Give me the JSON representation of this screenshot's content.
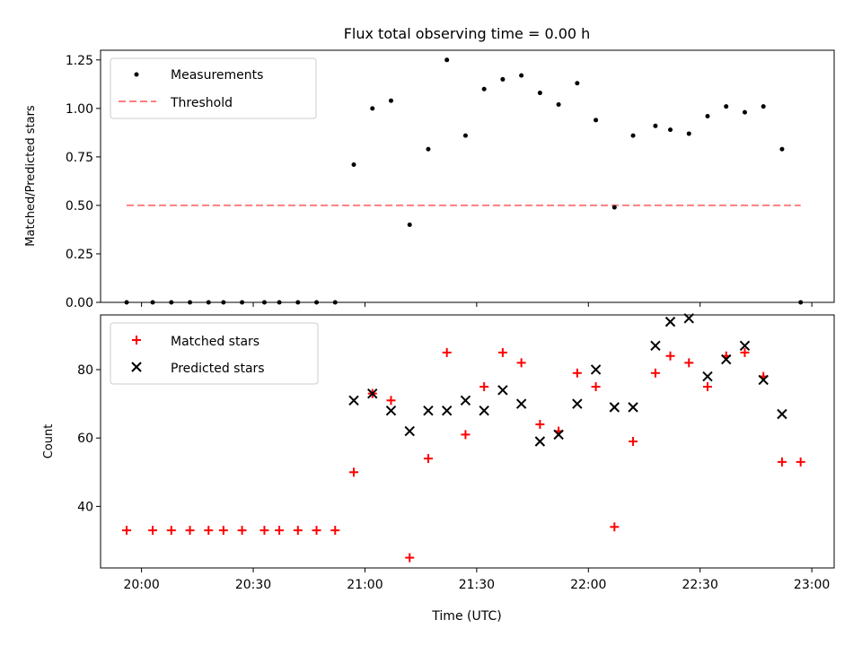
{
  "chart_data": [
    {
      "type": "scatter",
      "title": "Flux total observing time = 0.00 h",
      "ylabel": "Matched/Predicted stars",
      "xlabel": "",
      "ylim": [
        0,
        1.3
      ],
      "yticks": [
        0.0,
        0.25,
        0.5,
        0.75,
        1.0,
        1.25
      ],
      "ytick_labels": [
        "0.00",
        "0.25",
        "0.50",
        "0.75",
        "1.00",
        "1.25"
      ],
      "xlim": [
        "19:49",
        "23:06"
      ],
      "legend_position": "top-left",
      "legend": [
        "Measurements",
        "Threshold"
      ],
      "grid": false,
      "series": [
        {
          "name": "Measurements",
          "color": "#000000",
          "marker": "dot",
          "x": [
            "19:56",
            "20:03",
            "20:08",
            "20:13",
            "20:18",
            "20:22",
            "20:27",
            "20:33",
            "20:37",
            "20:42",
            "20:47",
            "20:52",
            "20:57",
            "21:02",
            "21:07",
            "21:12",
            "21:17",
            "21:22",
            "21:27",
            "21:32",
            "21:37",
            "21:42",
            "21:47",
            "21:52",
            "21:57",
            "22:02",
            "22:07",
            "22:12",
            "22:18",
            "22:22",
            "22:27",
            "22:32",
            "22:37",
            "22:42",
            "22:47",
            "22:52",
            "22:57"
          ],
          "y": [
            0.0,
            0.0,
            0.0,
            0.0,
            0.0,
            0.0,
            0.0,
            0.0,
            0.0,
            0.0,
            0.0,
            0.0,
            0.71,
            1.0,
            1.04,
            0.4,
            0.79,
            1.25,
            0.86,
            1.1,
            1.15,
            1.17,
            1.08,
            1.02,
            1.13,
            0.94,
            0.49,
            0.86,
            0.91,
            0.89,
            0.87,
            0.96,
            1.01,
            0.98,
            1.01,
            0.79,
            0.0
          ]
        },
        {
          "name": "Threshold",
          "color": "#ff7f7f",
          "style": "dashed",
          "x": [
            "19:56",
            "22:57"
          ],
          "y": [
            0.5,
            0.5
          ]
        }
      ]
    },
    {
      "type": "scatter",
      "title": "",
      "ylabel": "Count",
      "xlabel": "Time (UTC)",
      "ylim": [
        22,
        96
      ],
      "yticks": [
        40,
        60,
        80
      ],
      "ytick_labels": [
        "40",
        "60",
        "80"
      ],
      "xlim": [
        "19:49",
        "23:06"
      ],
      "xticks": [
        "20:00",
        "20:30",
        "21:00",
        "21:30",
        "22:00",
        "22:30",
        "23:00"
      ],
      "legend_position": "top-left",
      "legend": [
        "Matched stars",
        "Predicted stars"
      ],
      "grid": false,
      "series": [
        {
          "name": "Matched stars",
          "color": "#ff0000",
          "marker": "plus",
          "x": [
            "19:56",
            "20:03",
            "20:08",
            "20:13",
            "20:18",
            "20:22",
            "20:27",
            "20:33",
            "20:37",
            "20:42",
            "20:47",
            "20:52",
            "20:57",
            "21:02",
            "21:07",
            "21:12",
            "21:17",
            "21:22",
            "21:27",
            "21:32",
            "21:37",
            "21:42",
            "21:47",
            "21:52",
            "21:57",
            "22:02",
            "22:07",
            "22:12",
            "22:18",
            "22:22",
            "22:27",
            "22:32",
            "22:37",
            "22:42",
            "22:47",
            "22:52",
            "22:57"
          ],
          "y": [
            33,
            33,
            33,
            33,
            33,
            33,
            33,
            33,
            33,
            33,
            33,
            33,
            50,
            73,
            71,
            25,
            54,
            85,
            61,
            75,
            85,
            82,
            64,
            62,
            79,
            75,
            34,
            59,
            79,
            84,
            82,
            75,
            84,
            85,
            78,
            53,
            53
          ]
        },
        {
          "name": "Predicted stars",
          "color": "#000000",
          "marker": "x",
          "x": [
            "20:57",
            "21:02",
            "21:07",
            "21:12",
            "21:17",
            "21:22",
            "21:27",
            "21:32",
            "21:37",
            "21:42",
            "21:47",
            "21:52",
            "21:57",
            "22:02",
            "22:07",
            "22:12",
            "22:18",
            "22:22",
            "22:27",
            "22:32",
            "22:37",
            "22:42",
            "22:47",
            "22:52"
          ],
          "y": [
            71,
            73,
            68,
            62,
            68,
            68,
            71,
            68,
            74,
            70,
            59,
            61,
            70,
            80,
            69,
            69,
            87,
            94,
            95,
            78,
            83,
            87,
            77,
            67
          ]
        }
      ]
    }
  ]
}
